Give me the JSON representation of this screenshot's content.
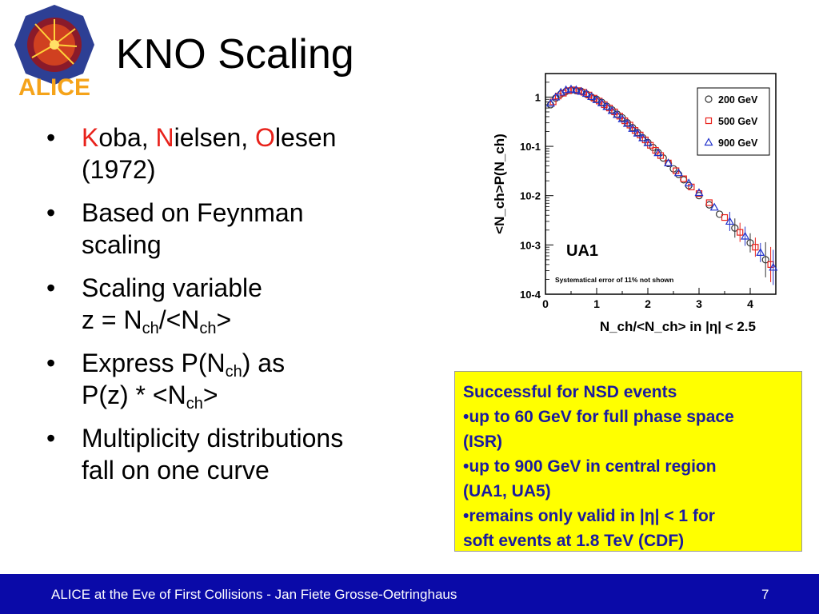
{
  "logo": {
    "text": "ALICE"
  },
  "slide": {
    "title": "KNO Scaling"
  },
  "bullets": [
    {
      "k": "K",
      "k_rest": "oba, ",
      "n": "N",
      "n_rest": "ielsen, ",
      "o": "O",
      "o_rest": "lesen",
      "line2": "(1972)"
    },
    {
      "line1": "Based on Feynman",
      "line2": "scaling"
    },
    {
      "line1": "Scaling variable",
      "z_prefix": "z = N",
      "sub1": "ch",
      "z_mid": "/<N",
      "sub2": "ch",
      "z_end": ">"
    },
    {
      "line1_prefix": "Express P(N",
      "sub": "ch",
      "line1_end": ") as",
      "line2_prefix": "P(z) * <N",
      "sub2": "ch",
      "line2_end": ">"
    },
    {
      "line1": "Multiplicity distributions",
      "line2": "fall on one curve"
    }
  ],
  "bullet_char": "•",
  "chart_data": {
    "type": "scatter",
    "ylabel": "<N_ch>P(N_ch)",
    "xlabel": "N_ch/<N_ch> in |η| < 2.5",
    "x_range": [
      0,
      4.5
    ],
    "y_range": [
      0.0001,
      3
    ],
    "y_scale": "log",
    "x_ticks": [
      "0",
      "1",
      "2",
      "3",
      "4"
    ],
    "y_ticks": [
      "10-4",
      "10-3",
      "10-2",
      "10-1",
      "1"
    ],
    "annotation": "UA1",
    "note": "Systematical error of 11% not shown",
    "legend_position": "top-right",
    "series": [
      {
        "name": "200 GeV",
        "marker": "circle",
        "color": "#333333",
        "points": [
          [
            0.1,
            0.7
          ],
          [
            0.2,
            0.95
          ],
          [
            0.3,
            1.15
          ],
          [
            0.4,
            1.3
          ],
          [
            0.5,
            1.38
          ],
          [
            0.6,
            1.35
          ],
          [
            0.7,
            1.3
          ],
          [
            0.8,
            1.15
          ],
          [
            0.9,
            1.0
          ],
          [
            1.0,
            0.9
          ],
          [
            1.1,
            0.78
          ],
          [
            1.2,
            0.65
          ],
          [
            1.3,
            0.55
          ],
          [
            1.4,
            0.45
          ],
          [
            1.5,
            0.38
          ],
          [
            1.6,
            0.3
          ],
          [
            1.7,
            0.24
          ],
          [
            1.8,
            0.19
          ],
          [
            1.9,
            0.15
          ],
          [
            2.0,
            0.12
          ],
          [
            2.1,
            0.095
          ],
          [
            2.2,
            0.075
          ],
          [
            2.3,
            0.058
          ],
          [
            2.4,
            0.045
          ],
          [
            2.5,
            0.035
          ],
          [
            2.6,
            0.027
          ],
          [
            2.7,
            0.021
          ],
          [
            2.8,
            0.016
          ],
          [
            3.0,
            0.01
          ],
          [
            3.2,
            0.0065
          ],
          [
            3.4,
            0.0042
          ],
          [
            3.7,
            0.0022
          ],
          [
            4.0,
            0.0011
          ],
          [
            4.3,
            0.0005
          ]
        ]
      },
      {
        "name": "500 GeV",
        "marker": "square",
        "color": "#e8221b",
        "points": [
          [
            0.15,
            0.8
          ],
          [
            0.25,
            1.05
          ],
          [
            0.35,
            1.2
          ],
          [
            0.45,
            1.35
          ],
          [
            0.55,
            1.4
          ],
          [
            0.65,
            1.35
          ],
          [
            0.75,
            1.25
          ],
          [
            0.85,
            1.1
          ],
          [
            0.95,
            0.95
          ],
          [
            1.05,
            0.83
          ],
          [
            1.15,
            0.7
          ],
          [
            1.25,
            0.6
          ],
          [
            1.35,
            0.5
          ],
          [
            1.45,
            0.41
          ],
          [
            1.55,
            0.33
          ],
          [
            1.65,
            0.27
          ],
          [
            1.75,
            0.21
          ],
          [
            1.85,
            0.17
          ],
          [
            1.95,
            0.135
          ],
          [
            2.05,
            0.105
          ],
          [
            2.15,
            0.083
          ],
          [
            2.25,
            0.065
          ],
          [
            2.4,
            0.046
          ],
          [
            2.55,
            0.032
          ],
          [
            2.7,
            0.022
          ],
          [
            2.85,
            0.015
          ],
          [
            3.0,
            0.011
          ],
          [
            3.2,
            0.0072
          ],
          [
            3.5,
            0.0036
          ],
          [
            3.8,
            0.0018
          ],
          [
            4.1,
            0.0009
          ],
          [
            4.4,
            0.0004
          ]
        ]
      },
      {
        "name": "900 GeV",
        "marker": "triangle",
        "color": "#2233cc",
        "points": [
          [
            0.1,
            0.75
          ],
          [
            0.2,
            1.0
          ],
          [
            0.3,
            1.25
          ],
          [
            0.4,
            1.4
          ],
          [
            0.5,
            1.45
          ],
          [
            0.6,
            1.4
          ],
          [
            0.7,
            1.3
          ],
          [
            0.8,
            1.18
          ],
          [
            0.9,
            1.02
          ],
          [
            1.0,
            0.88
          ],
          [
            1.1,
            0.76
          ],
          [
            1.2,
            0.64
          ],
          [
            1.3,
            0.53
          ],
          [
            1.4,
            0.44
          ],
          [
            1.5,
            0.36
          ],
          [
            1.6,
            0.29
          ],
          [
            1.7,
            0.23
          ],
          [
            1.8,
            0.185
          ],
          [
            1.9,
            0.148
          ],
          [
            2.0,
            0.118
          ],
          [
            2.2,
            0.074
          ],
          [
            2.4,
            0.046
          ],
          [
            2.6,
            0.029
          ],
          [
            2.8,
            0.018
          ],
          [
            3.0,
            0.0115
          ],
          [
            3.3,
            0.0058
          ],
          [
            3.6,
            0.003
          ],
          [
            3.9,
            0.0015
          ],
          [
            4.2,
            0.0007
          ],
          [
            4.45,
            0.00035
          ]
        ]
      }
    ]
  },
  "box": {
    "line1": "Successful for NSD events",
    "line2": "•up to 60 GeV for full phase space",
    "line3": "(ISR)",
    "line4": "•up to 900 GeV in central region",
    "line5": "(UA1, UA5)",
    "line6": "•remains only valid in |η| < 1 for",
    "line7": "soft events at 1.8 TeV (CDF)",
    "text_color": "#1a1aa0",
    "bg_color": "#ffff00"
  },
  "footer": {
    "text": "ALICE at the Eve of First Collisions  - Jan Fiete Grosse-Oetringhaus",
    "page": "7",
    "bg_color": "#0a0aa8"
  }
}
